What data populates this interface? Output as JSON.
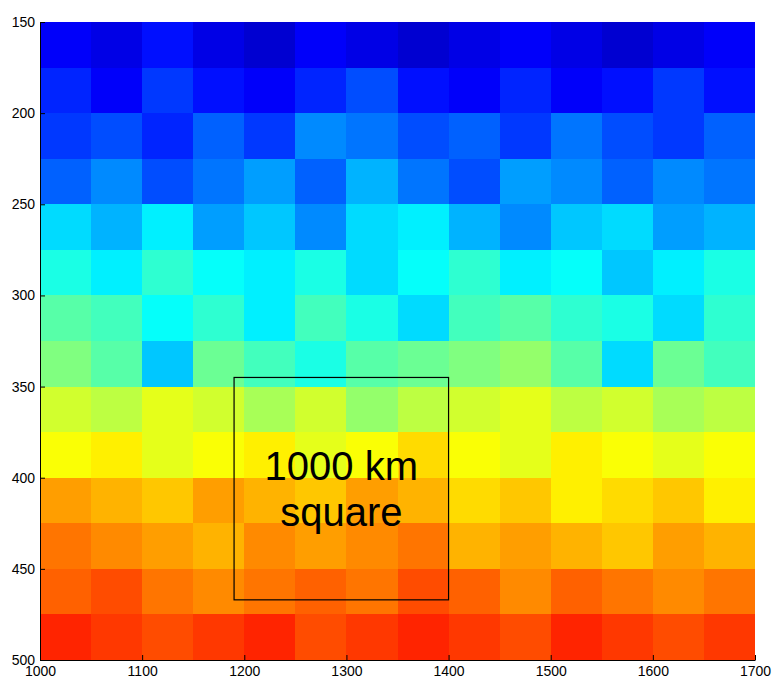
{
  "chart_data": {
    "type": "heatmap",
    "color": "jet",
    "clim": [
      0,
      1
    ],
    "xlim": [
      1000,
      1700
    ],
    "ylim": [
      150,
      500
    ],
    "xticks": [
      1000,
      1100,
      1200,
      1300,
      1400,
      1500,
      1600,
      1700
    ],
    "yticks": [
      150,
      200,
      250,
      300,
      350,
      400,
      450,
      500
    ],
    "xbins": [
      1000,
      1050,
      1100,
      1150,
      1200,
      1250,
      1300,
      1350,
      1400,
      1450,
      1500,
      1550,
      1600,
      1650,
      1700
    ],
    "ybins": [
      150,
      175,
      200,
      225,
      250,
      275,
      300,
      325,
      350,
      375,
      400,
      425,
      450,
      475,
      500
    ],
    "z": [
      [
        0.12,
        0.1,
        0.14,
        0.1,
        0.08,
        0.12,
        0.1,
        0.08,
        0.1,
        0.12,
        0.1,
        0.08,
        0.1,
        0.12
      ],
      [
        0.16,
        0.12,
        0.18,
        0.14,
        0.12,
        0.16,
        0.2,
        0.14,
        0.12,
        0.16,
        0.12,
        0.14,
        0.18,
        0.14
      ],
      [
        0.18,
        0.2,
        0.16,
        0.22,
        0.18,
        0.26,
        0.24,
        0.2,
        0.22,
        0.18,
        0.24,
        0.2,
        0.18,
        0.22
      ],
      [
        0.22,
        0.26,
        0.2,
        0.24,
        0.28,
        0.22,
        0.3,
        0.24,
        0.2,
        0.28,
        0.26,
        0.22,
        0.26,
        0.24
      ],
      [
        0.34,
        0.3,
        0.36,
        0.28,
        0.32,
        0.26,
        0.34,
        0.36,
        0.3,
        0.26,
        0.32,
        0.34,
        0.28,
        0.3
      ],
      [
        0.4,
        0.36,
        0.42,
        0.38,
        0.36,
        0.4,
        0.34,
        0.38,
        0.42,
        0.36,
        0.38,
        0.32,
        0.36,
        0.4
      ],
      [
        0.46,
        0.44,
        0.38,
        0.42,
        0.36,
        0.44,
        0.4,
        0.34,
        0.44,
        0.46,
        0.42,
        0.4,
        0.34,
        0.42
      ],
      [
        0.5,
        0.46,
        0.32,
        0.48,
        0.44,
        0.4,
        0.46,
        0.48,
        0.5,
        0.52,
        0.46,
        0.34,
        0.48,
        0.44
      ],
      [
        0.58,
        0.56,
        0.6,
        0.58,
        0.54,
        0.58,
        0.52,
        0.56,
        0.58,
        0.6,
        0.56,
        0.58,
        0.54,
        0.56
      ],
      [
        0.62,
        0.64,
        0.6,
        0.62,
        0.64,
        0.6,
        0.62,
        0.66,
        0.62,
        0.6,
        0.64,
        0.62,
        0.6,
        0.62
      ],
      [
        0.72,
        0.7,
        0.68,
        0.72,
        0.7,
        0.68,
        0.72,
        0.7,
        0.66,
        0.68,
        0.64,
        0.66,
        0.68,
        0.64
      ],
      [
        0.76,
        0.74,
        0.72,
        0.7,
        0.74,
        0.72,
        0.74,
        0.76,
        0.7,
        0.72,
        0.7,
        0.68,
        0.72,
        0.7
      ],
      [
        0.78,
        0.8,
        0.76,
        0.74,
        0.76,
        0.78,
        0.76,
        0.8,
        0.78,
        0.74,
        0.78,
        0.76,
        0.74,
        0.76
      ],
      [
        0.84,
        0.82,
        0.8,
        0.82,
        0.84,
        0.8,
        0.82,
        0.84,
        0.82,
        0.8,
        0.84,
        0.82,
        0.8,
        0.82
      ]
    ],
    "annotations": [
      {
        "text": "1000 km square",
        "x": [
          1190,
          1400
        ],
        "y": [
          345,
          467
        ]
      }
    ]
  }
}
